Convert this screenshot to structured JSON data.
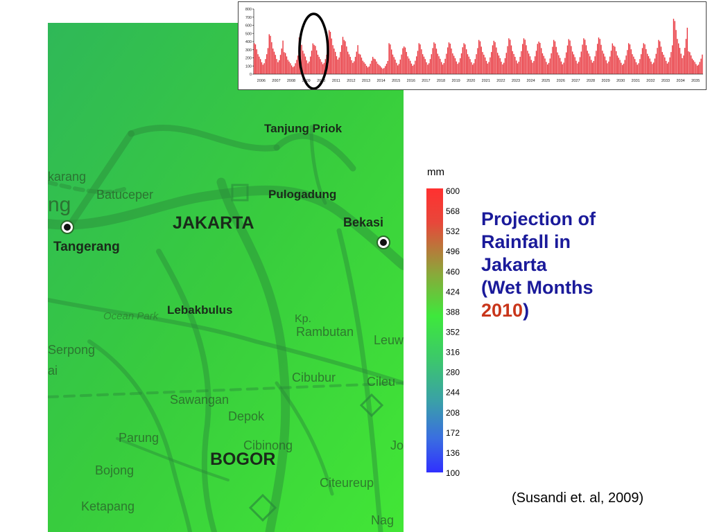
{
  "title": {
    "line1": "Projection of",
    "line2": "Rainfall in",
    "line3": "Jakarta",
    "line4_prefix": "(Wet Months",
    "year": "2010",
    "line5_suffix": ")"
  },
  "citation": "(Susandi et. al, 2009)",
  "colors": {
    "title": "#1a1a9a",
    "year": "#c8351a",
    "bars": "#e8323a",
    "map_green": "#3dcc3d"
  },
  "map": {
    "places": [
      {
        "key": "tanjung-priok",
        "label": "Tanjung Priok",
        "style": "bold"
      },
      {
        "key": "pulogadung",
        "label": "Pulogadung",
        "style": "bold"
      },
      {
        "key": "jakarta",
        "label": "JAKARTA",
        "style": "big"
      },
      {
        "key": "bekasi",
        "label": "Bekasi",
        "style": "bold"
      },
      {
        "key": "tangerang",
        "label": "Tangerang",
        "style": "bold"
      },
      {
        "key": "lebakbulus",
        "label": "Lebakbulus",
        "style": "bold"
      },
      {
        "key": "bogor",
        "label": "BOGOR",
        "style": "big"
      },
      {
        "key": "karang",
        "label": "karang",
        "style": "plain"
      },
      {
        "key": "batuceper",
        "label": "Batuceper",
        "style": "plain"
      },
      {
        "key": "ng",
        "label": "ng",
        "style": "plain"
      },
      {
        "key": "ocean-park",
        "label": "Ocean Park",
        "style": "italic"
      },
      {
        "key": "kp",
        "label": "Kp.",
        "style": "plain"
      },
      {
        "key": "rambutan",
        "label": "Rambutan",
        "style": "plain"
      },
      {
        "key": "leuw",
        "label": "Leuw",
        "style": "plain"
      },
      {
        "key": "serpong",
        "label": "Serpong",
        "style": "plain"
      },
      {
        "key": "ai",
        "label": "ai",
        "style": "plain"
      },
      {
        "key": "cibubur",
        "label": "Cibubur",
        "style": "plain"
      },
      {
        "key": "cileu",
        "label": "Cileu",
        "style": "plain"
      },
      {
        "key": "sawangan",
        "label": "Sawangan",
        "style": "plain"
      },
      {
        "key": "depok",
        "label": "Depok",
        "style": "plain"
      },
      {
        "key": "parung",
        "label": "Parung",
        "style": "plain"
      },
      {
        "key": "cibinong",
        "label": "Cibinong",
        "style": "plain"
      },
      {
        "key": "jo",
        "label": "Jo",
        "style": "plain"
      },
      {
        "key": "bojong",
        "label": "Bojong",
        "style": "plain"
      },
      {
        "key": "citeureup",
        "label": "Citeureup",
        "style": "plain"
      },
      {
        "key": "ketapang",
        "label": "Ketapang",
        "style": "plain"
      },
      {
        "key": "nag",
        "label": "Nag",
        "style": "plain"
      }
    ]
  },
  "legend": {
    "unit": "mm",
    "ticks": [
      "600",
      "568",
      "532",
      "496",
      "460",
      "424",
      "388",
      "352",
      "316",
      "280",
      "244",
      "208",
      "172",
      "136",
      "100"
    ]
  },
  "chart_data": {
    "type": "bar",
    "title": "",
    "xlabel": "",
    "ylabel": "",
    "ylim": [
      0,
      800
    ],
    "yticks": [
      0,
      100,
      200,
      300,
      400,
      500,
      600,
      700,
      800
    ],
    "year_labels": [
      "2006",
      "2007",
      "2008",
      "2009",
      "2010",
      "2011",
      "2012",
      "2013",
      "2014",
      "2015",
      "2016",
      "2017",
      "2018",
      "2019",
      "2020",
      "2021",
      "2022",
      "2023",
      "2024",
      "2025",
      "2026",
      "2027",
      "2028",
      "2029",
      "2030",
      "2031",
      "2032",
      "2033",
      "2034",
      "2035"
    ],
    "annual_peak_mm": [
      380,
      490,
      270,
      450,
      360,
      540,
      420,
      250,
      190,
      380,
      340,
      380,
      390,
      390,
      380,
      420,
      410,
      440,
      440,
      400,
      420,
      430,
      440,
      450,
      350,
      380,
      380,
      420,
      680,
      280
    ],
    "annual_low_mm": [
      80,
      100,
      60,
      90,
      90,
      130,
      100,
      60,
      50,
      70,
      70,
      80,
      80,
      90,
      80,
      90,
      80,
      90,
      100,
      80,
      80,
      90,
      100,
      90,
      80,
      80,
      90,
      90,
      130,
      80
    ],
    "highlight": {
      "shape": "ellipse",
      "covers_years": [
        "2009",
        "2010"
      ]
    }
  }
}
